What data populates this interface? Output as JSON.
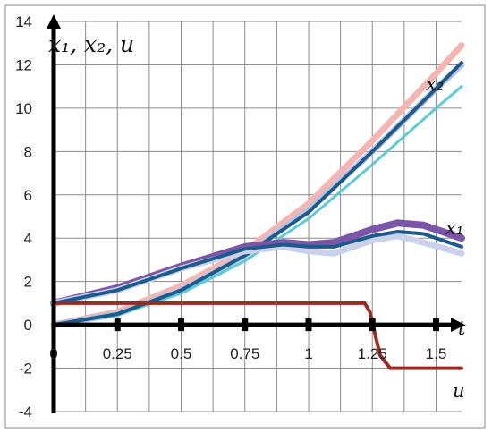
{
  "chart_data": {
    "type": "line",
    "title": "",
    "ylabel": "x₁, x₂, u",
    "xlabel": "t",
    "xlim": [
      0,
      1.6
    ],
    "ylim": [
      -4,
      14
    ],
    "x_ticks": [
      0,
      0.25,
      0.5,
      0.75,
      1,
      1.25,
      1.5
    ],
    "x_tick_labels": [
      "0",
      "0.25",
      "0.5",
      "0.75",
      "1",
      "1.25",
      "1.5"
    ],
    "y_ticks": [
      -4,
      -2,
      0,
      2,
      4,
      6,
      8,
      10,
      12,
      14
    ],
    "y_tick_labels": [
      "-4",
      "-2",
      "0",
      "2",
      "4",
      "6",
      "8",
      "10",
      "12",
      "14"
    ],
    "grid": true,
    "curve_labels": {
      "x1": "x₁",
      "x2": "x₂",
      "u": "u"
    },
    "series": [
      {
        "name": "x₂",
        "color": "#f4b6b4",
        "width": 7,
        "points": [
          [
            0,
            0
          ],
          [
            0.25,
            0.6
          ],
          [
            0.5,
            1.8
          ],
          [
            0.75,
            3.4
          ],
          [
            1,
            5.6
          ],
          [
            1.25,
            8.5
          ],
          [
            1.5,
            11.6
          ],
          [
            1.6,
            12.9
          ]
        ]
      },
      {
        "name": "x₂",
        "color": "#b8c4de",
        "width": 7,
        "points": [
          [
            0,
            0
          ],
          [
            0.25,
            0.5
          ],
          [
            0.5,
            1.6
          ],
          [
            0.75,
            3.2
          ],
          [
            1,
            5.3
          ],
          [
            1.25,
            8.0
          ],
          [
            1.5,
            10.9
          ],
          [
            1.6,
            12.0
          ]
        ]
      },
      {
        "name": "x₂",
        "color": "#5fc9d6",
        "width": 3,
        "points": [
          [
            0,
            0
          ],
          [
            0.25,
            0.45
          ],
          [
            0.5,
            1.45
          ],
          [
            0.75,
            2.95
          ],
          [
            1,
            4.9
          ],
          [
            1.25,
            7.4
          ],
          [
            1.5,
            10.0
          ],
          [
            1.6,
            11.0
          ]
        ]
      },
      {
        "name": "x₂",
        "color": "#1b5a8a",
        "width": 4,
        "points": [
          [
            0,
            0
          ],
          [
            0.25,
            0.5
          ],
          [
            0.5,
            1.6
          ],
          [
            0.75,
            3.2
          ],
          [
            1,
            5.2
          ],
          [
            1.25,
            8.0
          ],
          [
            1.5,
            10.9
          ],
          [
            1.6,
            12.1
          ]
        ]
      },
      {
        "name": "x₁",
        "color": "#7b56a6",
        "width": 8,
        "points": [
          [
            0,
            1
          ],
          [
            0.25,
            1.7
          ],
          [
            0.5,
            2.7
          ],
          [
            0.75,
            3.6
          ],
          [
            0.9,
            3.8
          ],
          [
            1,
            3.7
          ],
          [
            1.1,
            3.8
          ],
          [
            1.25,
            4.4
          ],
          [
            1.35,
            4.7
          ],
          [
            1.45,
            4.6
          ],
          [
            1.6,
            4.0
          ]
        ]
      },
      {
        "name": "x₁",
        "color": "#c9d2ea",
        "width": 7,
        "points": [
          [
            0,
            1
          ],
          [
            0.25,
            1.6
          ],
          [
            0.5,
            2.6
          ],
          [
            0.75,
            3.4
          ],
          [
            0.9,
            3.6
          ],
          [
            1,
            3.4
          ],
          [
            1.1,
            3.3
          ],
          [
            1.25,
            3.9
          ],
          [
            1.35,
            4.1
          ],
          [
            1.45,
            3.8
          ],
          [
            1.6,
            3.3
          ]
        ]
      },
      {
        "name": "x₁",
        "color": "#1b5a8a",
        "width": 4,
        "points": [
          [
            0,
            1
          ],
          [
            0.25,
            1.6
          ],
          [
            0.5,
            2.6
          ],
          [
            0.75,
            3.5
          ],
          [
            0.9,
            3.7
          ],
          [
            1,
            3.6
          ],
          [
            1.1,
            3.6
          ],
          [
            1.25,
            4.1
          ],
          [
            1.35,
            4.3
          ],
          [
            1.45,
            4.2
          ],
          [
            1.6,
            3.6
          ]
        ]
      },
      {
        "name": "u",
        "color": "#9b2a22",
        "width": 4,
        "points": [
          [
            0,
            1
          ],
          [
            1.22,
            1
          ],
          [
            1.24,
            0.6
          ],
          [
            1.28,
            -1.4
          ],
          [
            1.32,
            -2
          ],
          [
            1.6,
            -2
          ]
        ]
      }
    ]
  }
}
